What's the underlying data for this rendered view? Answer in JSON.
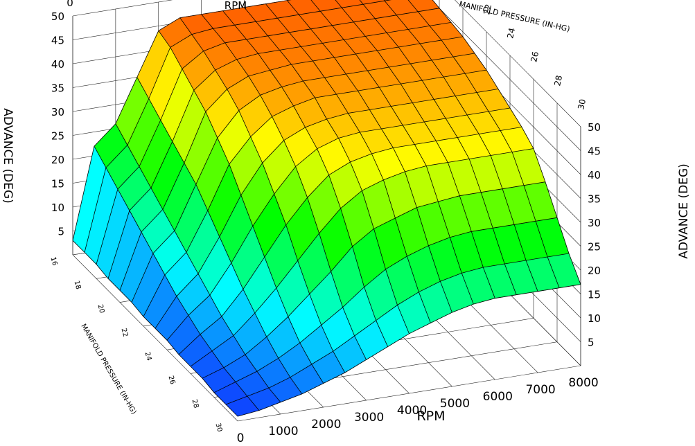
{
  "chart_data": {
    "type": "surface",
    "title": "",
    "x_axis": {
      "label": "RPM",
      "range": [
        0,
        8000
      ],
      "ticks": [
        0,
        1000,
        2000,
        3000,
        4000,
        5000,
        6000,
        7000,
        8000
      ]
    },
    "y_axis": {
      "label": "MANIFOLD PRESSURE (IN-HG)",
      "range": [
        16,
        30
      ],
      "ticks": [
        16,
        18,
        20,
        22,
        24,
        26,
        28,
        30
      ]
    },
    "z_axis": {
      "label": "ADVANCE (DEG)",
      "range": [
        0,
        50
      ],
      "ticks": [
        5,
        10,
        15,
        20,
        25,
        30,
        35,
        40,
        45,
        50
      ]
    },
    "grid": true,
    "colormap": [
      "#1030ff",
      "#00ffff",
      "#00ff00",
      "#ffff00",
      "#ff4000"
    ],
    "rpm_values": [
      0,
      500,
      1000,
      1500,
      2000,
      2500,
      3000,
      3500,
      4000,
      4500,
      5000,
      5500,
      6000,
      6500,
      7000,
      7500,
      8000
    ],
    "pressure_values": [
      16,
      17,
      18,
      19,
      20,
      21,
      22,
      23,
      24,
      25,
      26,
      27,
      28,
      29,
      30
    ],
    "advance_rows": [
      [
        3,
        22,
        26,
        35,
        44,
        46,
        46,
        46,
        46,
        46,
        46,
        46,
        46,
        46,
        46,
        46,
        46
      ],
      [
        3,
        20,
        24,
        33,
        43,
        45,
        45.5,
        45.5,
        45.5,
        45.5,
        45.5,
        45.5,
        45.5,
        45.5,
        45.5,
        45.5,
        45.5
      ],
      [
        3,
        18,
        22,
        31,
        41,
        44,
        45,
        45,
        45,
        45,
        45,
        45,
        45,
        45,
        45,
        45,
        45
      ],
      [
        2.5,
        16,
        20,
        29,
        39,
        42.5,
        44,
        44.5,
        44.5,
        44.5,
        44.5,
        44.5,
        44.5,
        44.5,
        44.5,
        44.5,
        44.5
      ],
      [
        2.5,
        14,
        18,
        27,
        37,
        41,
        43,
        43.5,
        44,
        44,
        44,
        44,
        44,
        44,
        44,
        44,
        44
      ],
      [
        2.5,
        12,
        16,
        25,
        34,
        39,
        41.5,
        42.5,
        43,
        43,
        43,
        43,
        43,
        43,
        43,
        43,
        43
      ],
      [
        2,
        10,
        14,
        22,
        31,
        36,
        39.5,
        41,
        42,
        42,
        42,
        42,
        42,
        42,
        42,
        42,
        42
      ],
      [
        2,
        8,
        12,
        19,
        27,
        33,
        37,
        39,
        40,
        40.5,
        40.5,
        40.5,
        40.5,
        40.5,
        40.5,
        40.5,
        40.5
      ],
      [
        2,
        6.5,
        10,
        16,
        23,
        29,
        34,
        37,
        38.5,
        39,
        39,
        39,
        39,
        39,
        39,
        39,
        39
      ],
      [
        1.5,
        5,
        8,
        13,
        19,
        25,
        30,
        34,
        36,
        37,
        37.5,
        37.5,
        37.5,
        37.5,
        37.5,
        37.5,
        37.5
      ],
      [
        1.5,
        4,
        6.5,
        10.5,
        15,
        20,
        25,
        29.5,
        32.5,
        34,
        35,
        35.5,
        35.5,
        35.5,
        35.5,
        35.5,
        35.5
      ],
      [
        1.5,
        3,
        5,
        8,
        11.5,
        15.5,
        19.5,
        24,
        27,
        28.5,
        30,
        30.5,
        31,
        31,
        31,
        31,
        31
      ],
      [
        1,
        2.5,
        4,
        6,
        8.5,
        11.5,
        14.5,
        18,
        21,
        23,
        24.5,
        25.5,
        26,
        26,
        26,
        26,
        26
      ],
      [
        1,
        2,
        3,
        4.5,
        6.5,
        8.5,
        11,
        13.5,
        16,
        18,
        19.5,
        20.5,
        21,
        21,
        21,
        21,
        21
      ],
      [
        1,
        1.5,
        2.5,
        3.5,
        5,
        6.5,
        8.5,
        10.5,
        12.5,
        14,
        15.5,
        16.5,
        17,
        17,
        17,
        17,
        17
      ]
    ]
  }
}
